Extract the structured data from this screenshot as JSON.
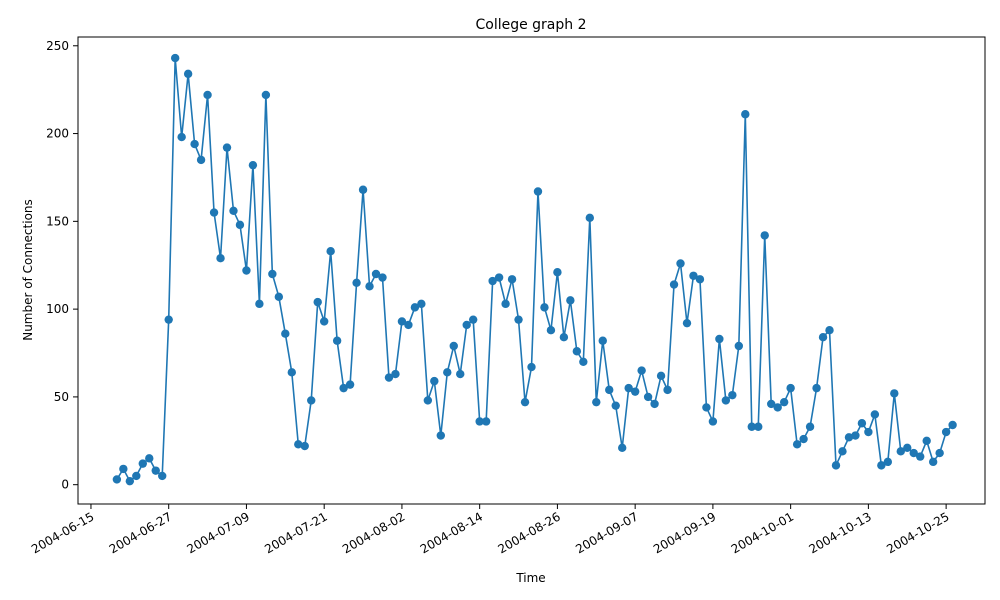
{
  "chart_data": {
    "type": "line",
    "title": "College graph 2",
    "xlabel": "Time",
    "ylabel": "Number of Connections",
    "xlim": [
      "2004-06-13",
      "2004-10-31"
    ],
    "ylim": [
      -11,
      255
    ],
    "grid": false,
    "legend": "none",
    "line_color": "#1f77b4",
    "marker": "circle",
    "xticks": [
      "2004-06-15",
      "2004-06-27",
      "2004-07-09",
      "2004-07-21",
      "2004-08-02",
      "2004-08-14",
      "2004-08-26",
      "2004-09-07",
      "2004-09-19",
      "2004-10-01",
      "2004-10-13",
      "2004-10-25"
    ],
    "yticks": [
      0,
      50,
      100,
      150,
      200,
      250
    ],
    "start_date": "2004-06-19",
    "values": [
      3,
      9,
      2,
      5,
      12,
      15,
      8,
      5,
      94,
      243,
      198,
      234,
      194,
      185,
      222,
      155,
      129,
      192,
      156,
      148,
      122,
      182,
      103,
      222,
      120,
      107,
      86,
      64,
      23,
      22,
      48,
      104,
      93,
      133,
      82,
      55,
      57,
      115,
      168,
      113,
      120,
      118,
      61,
      63,
      93,
      91,
      101,
      103,
      48,
      59,
      28,
      64,
      79,
      63,
      91,
      94,
      36,
      36,
      116,
      118,
      103,
      117,
      94,
      47,
      67,
      167,
      101,
      88,
      121,
      84,
      105,
      76,
      70,
      152,
      47,
      82,
      54,
      45,
      21,
      55,
      53,
      65,
      50,
      46,
      62,
      54,
      114,
      126,
      92,
      119,
      117,
      44,
      36,
      83,
      48,
      51,
      79,
      211,
      33,
      33,
      142,
      46,
      44,
      47,
      55,
      23,
      26,
      33,
      55,
      84,
      88,
      11,
      19,
      27,
      28,
      35,
      30,
      40,
      11,
      13,
      52,
      19,
      21,
      18,
      16,
      25,
      13,
      18,
      30,
      34
    ]
  }
}
